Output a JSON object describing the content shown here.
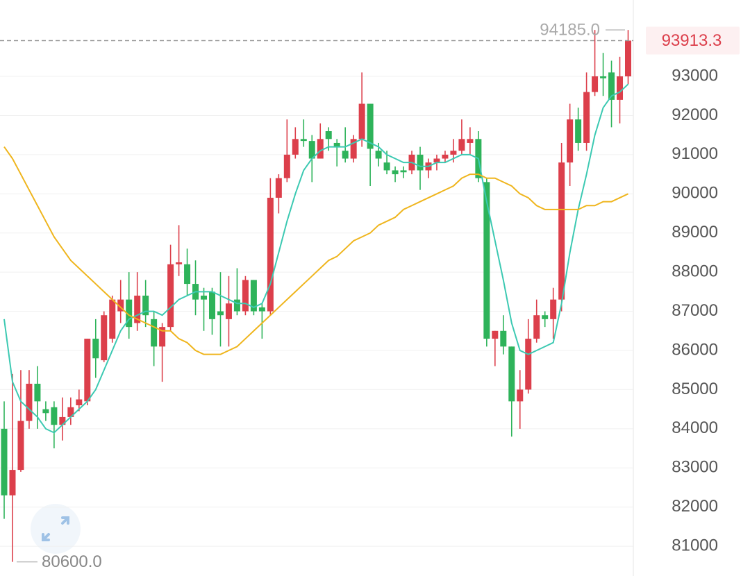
{
  "chart_data": {
    "type": "candlestick",
    "open": [
      84000,
      82300,
      82950,
      84200,
      85150,
      84500,
      84550,
      84100,
      84300,
      84600,
      84700,
      86300,
      85750,
      86300,
      87000,
      87300,
      86700,
      87400,
      86800,
      86100,
      86600,
      88200,
      88200,
      87700,
      87400,
      87500,
      87000,
      86800,
      87300,
      87000,
      87800,
      87100,
      87000,
      89900,
      90400,
      91000,
      91400,
      91350,
      90900,
      91600,
      91300,
      91100,
      90900,
      91400,
      92300,
      91100,
      90800,
      90600,
      90600,
      90600,
      91000,
      90600,
      90800,
      90900,
      91000,
      91100,
      91300,
      91400,
      90300,
      86300,
      86500,
      86100,
      84700,
      85000,
      86300,
      86900,
      86800,
      87300,
      90800,
      91900,
      91300,
      92600,
      93000,
      93100,
      92400,
      93000
    ],
    "high": [
      84700,
      85400,
      85500,
      85500,
      85600,
      84700,
      84700,
      84800,
      84800,
      85000,
      86300,
      86800,
      87000,
      87400,
      87800,
      88000,
      88000,
      87800,
      87000,
      86700,
      88700,
      89200,
      88600,
      88300,
      87600,
      87600,
      88000,
      87900,
      88100,
      87900,
      87800,
      87200,
      90400,
      90500,
      91900,
      91700,
      91900,
      91500,
      91800,
      91700,
      91400,
      91700,
      91500,
      93100,
      92300,
      91300,
      91100,
      90700,
      90700,
      91100,
      91200,
      90900,
      91000,
      91100,
      91400,
      91900,
      91700,
      91600,
      90400,
      86500,
      86900,
      86100,
      85500,
      86800,
      87300,
      87000,
      87600,
      91300,
      92300,
      92200,
      93100,
      94185,
      93600,
      93400,
      93500,
      94185
    ],
    "low": [
      81700,
      80600,
      82900,
      84000,
      84000,
      84200,
      83500,
      83700,
      84100,
      84450,
      84600,
      85300,
      85700,
      86200,
      86700,
      86300,
      86500,
      86600,
      85600,
      85200,
      86500,
      87900,
      87400,
      86900,
      86500,
      86400,
      86100,
      86100,
      86900,
      86900,
      86900,
      86300,
      86900,
      89500,
      90300,
      90900,
      91200,
      90300,
      90900,
      91100,
      90700,
      90800,
      90800,
      91200,
      90200,
      90700,
      90500,
      90300,
      90400,
      90500,
      90100,
      90400,
      90600,
      90800,
      90800,
      91000,
      91000,
      90300,
      86100,
      85600,
      85900,
      83800,
      84000,
      84900,
      86200,
      86600,
      86300,
      87000,
      90200,
      91100,
      91100,
      92500,
      92500,
      91700,
      91800,
      92800
    ],
    "close": [
      82300,
      82950,
      84200,
      85150,
      84700,
      84400,
      84100,
      84300,
      84550,
      84750,
      86300,
      85800,
      86900,
      87300,
      87300,
      86600,
      87400,
      86900,
      86100,
      86600,
      88200,
      88250,
      87700,
      87300,
      87300,
      86800,
      86900,
      87200,
      87000,
      87800,
      87000,
      87000,
      89900,
      90400,
      91000,
      91400,
      91350,
      90900,
      91400,
      91400,
      91200,
      90900,
      91400,
      92300,
      91150,
      90900,
      90600,
      90500,
      90550,
      91000,
      90600,
      90800,
      90900,
      91000,
      91100,
      91400,
      91400,
      90400,
      86300,
      86500,
      86100,
      84700,
      85000,
      86300,
      86900,
      86800,
      87300,
      90800,
      91900,
      91300,
      92600,
      93000,
      92950,
      92400,
      93000,
      93913.3
    ],
    "up_color": "#dc3f4b",
    "down_color": "#2eb35a",
    "series": [
      {
        "color": "#3cc9b2",
        "values": [
          86800,
          85200,
          84700,
          84500,
          84300,
          84000,
          83900,
          84100,
          84300,
          84500,
          84700,
          85000,
          85500,
          86000,
          86500,
          86800,
          86900,
          87000,
          87000,
          86900,
          87100,
          87300,
          87400,
          87500,
          87500,
          87500,
          87400,
          87300,
          87200,
          87200,
          87100,
          87200,
          87700,
          88500,
          89300,
          90000,
          90600,
          90900,
          91100,
          91200,
          91200,
          91200,
          91300,
          91400,
          91300,
          91200,
          91000,
          90900,
          90800,
          90800,
          90700,
          90700,
          90800,
          90800,
          90900,
          91000,
          91000,
          90900,
          89800,
          88800,
          87800,
          86700,
          86000,
          85900,
          86000,
          86100,
          86200,
          87200,
          88500,
          89600,
          90500,
          91500,
          92200,
          92500,
          92600,
          92800
        ]
      },
      {
        "color": "#efb51d",
        "values": [
          91200,
          90900,
          90500,
          90100,
          89700,
          89300,
          88900,
          88600,
          88300,
          88100,
          87900,
          87700,
          87500,
          87300,
          87100,
          86900,
          86800,
          86700,
          86600,
          86500,
          86500,
          86300,
          86200,
          86000,
          85900,
          85900,
          85900,
          86000,
          86100,
          86300,
          86500,
          86700,
          86900,
          87100,
          87300,
          87500,
          87700,
          87900,
          88100,
          88300,
          88400,
          88600,
          88800,
          88900,
          89000,
          89200,
          89300,
          89400,
          89600,
          89700,
          89800,
          89900,
          90000,
          90100,
          90200,
          90400,
          90500,
          90500,
          90400,
          90400,
          90300,
          90200,
          90000,
          89900,
          89700,
          89600,
          89600,
          89600,
          89600,
          89600,
          89700,
          89700,
          89800,
          89800,
          89900,
          90000
        ]
      }
    ],
    "max_label": {
      "value": 94185,
      "label": "94185.0"
    },
    "min_label": {
      "value": 80600,
      "label": "80600.0"
    },
    "ylim": [
      80240,
      94950
    ],
    "yticks": [
      81000,
      82000,
      83000,
      84000,
      85000,
      86000,
      87000,
      88000,
      89000,
      90000,
      91000,
      92000,
      93000
    ],
    "grid": true
  }
}
